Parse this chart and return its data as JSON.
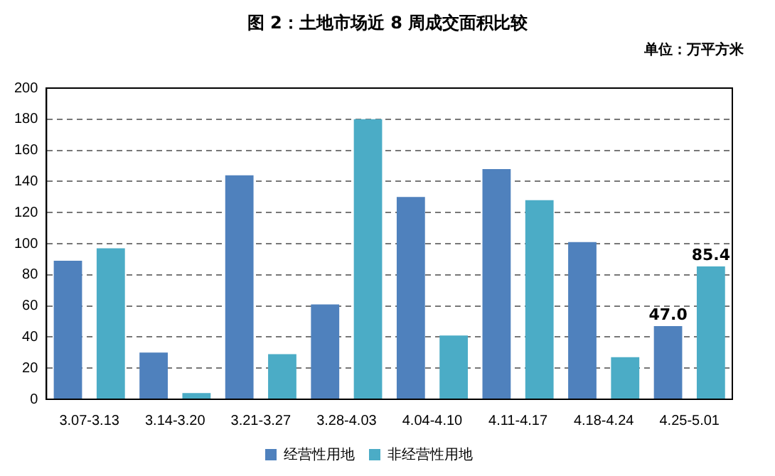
{
  "chart_data": {
    "type": "bar",
    "title": "图 2：土地市场近 8 周成交面积比较",
    "annotations": [
      "单位：万平方米"
    ],
    "categories": [
      "3.07-3.13",
      "3.14-3.20",
      "3.21-3.27",
      "3.28-4.03",
      "4.04-4.10",
      "4.11-4.17",
      "4.18-4.24",
      "4.25-5.01"
    ],
    "series": [
      {
        "name": "经营性用地",
        "color": "#4f81bd",
        "values": [
          89,
          30,
          144,
          61,
          130,
          148,
          101,
          47.0
        ],
        "value_labels": [
          null,
          null,
          null,
          null,
          null,
          null,
          null,
          "47.0"
        ]
      },
      {
        "name": "非经营性用地",
        "color": "#4bacc6",
        "values": [
          97,
          4,
          29,
          180,
          41,
          128,
          27,
          85.4
        ],
        "value_labels": [
          null,
          null,
          null,
          null,
          null,
          null,
          null,
          "85.4"
        ]
      }
    ],
    "ylim": [
      0,
      200
    ],
    "yticks": [
      0,
      20,
      40,
      60,
      80,
      100,
      120,
      140,
      160,
      180,
      200
    ],
    "grid": "y",
    "legend": "bottom"
  }
}
